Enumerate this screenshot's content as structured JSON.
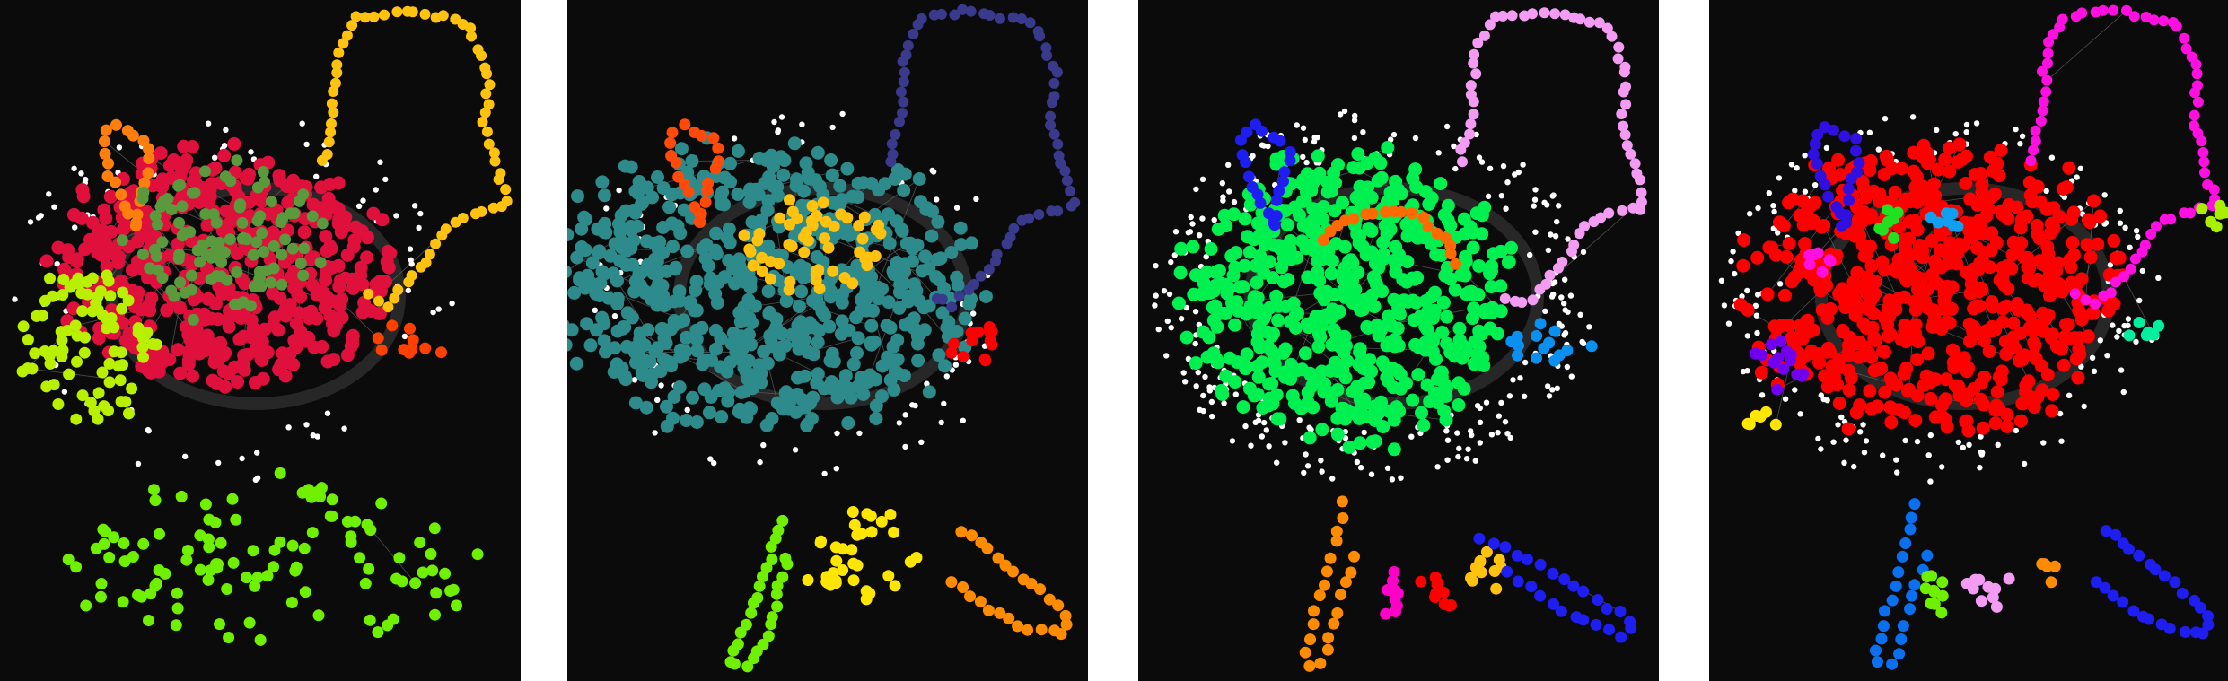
{
  "figure": {
    "panel_count": 4,
    "background_color": "#0b0b0b",
    "unassigned_node_color": "#ffffff",
    "edge_color": "#6b6b6b"
  },
  "panels": [
    {
      "id": "panel-1",
      "communities": [
        {
          "role": "core",
          "color": "#e0103c"
        },
        {
          "role": "top-right-loop",
          "color": "#ffc20e"
        },
        {
          "role": "top-left-loop",
          "color": "#ff7f0e"
        },
        {
          "role": "upper-center-cluster",
          "color": "#5a9a3c"
        },
        {
          "role": "left-cluster",
          "color": "#b8f000"
        },
        {
          "role": "bottom-cluster",
          "color": "#6ef000"
        },
        {
          "role": "right-small",
          "color": "#ff4000"
        }
      ]
    },
    {
      "id": "panel-2",
      "communities": [
        {
          "role": "core",
          "color": "#2e8b8b"
        },
        {
          "role": "top-right-loop",
          "color": "#3a3a8c"
        },
        {
          "role": "top-left-loop",
          "color": "#ff4a0a"
        },
        {
          "role": "upper-center-cluster",
          "color": "#ffc20e"
        },
        {
          "role": "right-small",
          "color": "#ff0000"
        },
        {
          "role": "bottom-left",
          "color": "#6ef000"
        },
        {
          "role": "bottom-center",
          "color": "#ffe600"
        },
        {
          "role": "bottom-right-loop",
          "color": "#ff8c00"
        }
      ]
    },
    {
      "id": "panel-3",
      "communities": [
        {
          "role": "core",
          "color": "#00f050"
        },
        {
          "role": "top-right-loop",
          "color": "#f49cf4"
        },
        {
          "role": "top-left-loop",
          "color": "#1e1ef0"
        },
        {
          "role": "upper-arc",
          "color": "#ff6a00"
        },
        {
          "role": "right-small",
          "color": "#0a90f0"
        },
        {
          "role": "bottom-left-loop",
          "color": "#ff8c00"
        },
        {
          "role": "bottom-magenta",
          "color": "#ff00c8"
        },
        {
          "role": "bottom-red",
          "color": "#ff0000"
        },
        {
          "role": "bottom-yellow",
          "color": "#ffc20e"
        },
        {
          "role": "bottom-right-loop",
          "color": "#1e1ef0"
        }
      ]
    },
    {
      "id": "panel-4",
      "communities": [
        {
          "role": "core",
          "color": "#ff0000"
        },
        {
          "role": "top-right-loop",
          "color": "#ff10e0"
        },
        {
          "role": "top-right-tip",
          "color": "#a8f000"
        },
        {
          "role": "top-left-loop",
          "color": "#3010e0"
        },
        {
          "role": "green-small",
          "color": "#20e020"
        },
        {
          "role": "blue-small",
          "color": "#10a0f0"
        },
        {
          "role": "magenta-small",
          "color": "#ff10e0"
        },
        {
          "role": "purple-left",
          "color": "#7000f0"
        },
        {
          "role": "yellow-left",
          "color": "#ffe600"
        },
        {
          "role": "teal-right",
          "color": "#00f0a0"
        },
        {
          "role": "bottom-left-loop",
          "color": "#0a70f0"
        },
        {
          "role": "bottom-green",
          "color": "#6ef000"
        },
        {
          "role": "bottom-pink",
          "color": "#f49cf4"
        },
        {
          "role": "bottom-orange",
          "color": "#ff8c00"
        },
        {
          "role": "bottom-right-loop",
          "color": "#1e1ef0"
        }
      ]
    }
  ]
}
